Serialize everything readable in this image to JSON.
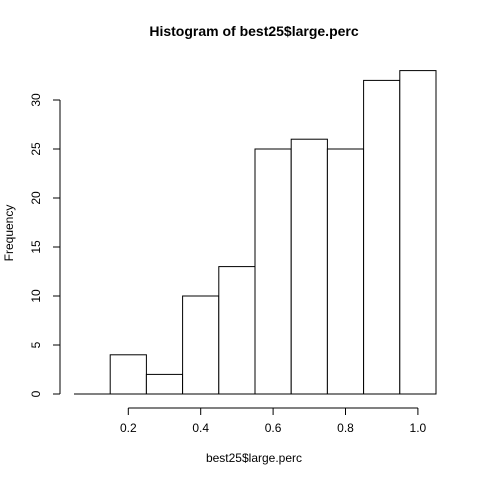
{
  "chart_data": {
    "type": "bar",
    "title": "Histogram of best25$large.perc",
    "xlabel": "best25$large.perc",
    "ylabel": "Frequency",
    "bin_edges": [
      0.05,
      0.15,
      0.25,
      0.35,
      0.45,
      0.55,
      0.65,
      0.75,
      0.85,
      0.95,
      1.05
    ],
    "values": [
      0,
      4,
      2,
      10,
      13,
      25,
      26,
      25,
      32,
      33
    ],
    "x_ticks": [
      0.2,
      0.4,
      0.6,
      0.8,
      1.0
    ],
    "x_tick_labels": [
      "0.2",
      "0.4",
      "0.6",
      "0.8",
      "1.0"
    ],
    "y_ticks": [
      0,
      5,
      10,
      15,
      20,
      25,
      30
    ],
    "y_tick_labels": [
      "0",
      "5",
      "10",
      "15",
      "20",
      "25",
      "30"
    ],
    "xlim": [
      0.05,
      1.05
    ],
    "ylim": [
      0,
      33
    ],
    "grid": false,
    "colors": {
      "bar_fill": "#ffffff",
      "bar_stroke": "#000000"
    }
  }
}
